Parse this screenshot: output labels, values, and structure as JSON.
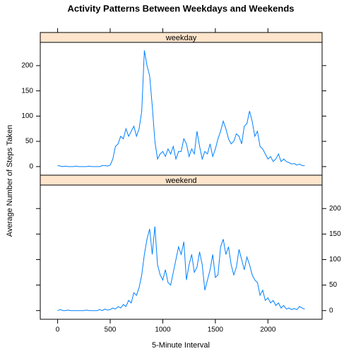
{
  "title": "Activity Patterns Between Weekdays and Weekends",
  "x_label": "5-Minute Interval",
  "y_label": "Average Number of Steps Taken",
  "chart_data": [
    {
      "type": "line",
      "strip": "weekday",
      "color": "#0080ff",
      "x": [
        0,
        25,
        50,
        75,
        100,
        125,
        150,
        175,
        200,
        225,
        250,
        275,
        300,
        325,
        350,
        375,
        400,
        425,
        450,
        475,
        500,
        525,
        550,
        575,
        600,
        625,
        650,
        675,
        700,
        725,
        750,
        775,
        800,
        825,
        850,
        875,
        900,
        925,
        950,
        975,
        1000,
        1025,
        1050,
        1075,
        1100,
        1125,
        1150,
        1175,
        1200,
        1225,
        1250,
        1275,
        1300,
        1325,
        1350,
        1375,
        1400,
        1425,
        1450,
        1475,
        1500,
        1525,
        1550,
        1575,
        1600,
        1625,
        1650,
        1675,
        1700,
        1725,
        1750,
        1775,
        1800,
        1825,
        1850,
        1875,
        1900,
        1925,
        1950,
        1975,
        2000,
        2025,
        2050,
        2075,
        2100,
        2125,
        2150,
        2175,
        2200,
        2225,
        2250,
        2275,
        2300,
        2325,
        2350
      ],
      "series": [
        {
          "values": [
            2,
            1,
            0,
            1,
            0,
            0,
            0,
            1,
            0,
            0,
            0,
            0,
            1,
            0,
            0,
            0,
            0,
            2,
            2,
            1,
            3,
            15,
            40,
            45,
            60,
            55,
            75,
            60,
            70,
            80,
            60,
            75,
            110,
            230,
            200,
            180,
            120,
            50,
            15,
            25,
            30,
            20,
            35,
            25,
            40,
            15,
            30,
            30,
            55,
            45,
            20,
            35,
            25,
            70,
            40,
            15,
            30,
            25,
            45,
            20,
            35,
            55,
            70,
            90,
            75,
            55,
            45,
            50,
            65,
            60,
            45,
            80,
            85,
            110,
            90,
            60,
            70,
            40,
            35,
            25,
            15,
            20,
            10,
            15,
            25,
            10,
            15,
            10,
            8,
            5,
            6,
            3,
            5,
            2,
            2
          ]
        }
      ],
      "xlim": [
        -165,
        2515
      ],
      "ylim": [
        -17,
        246
      ],
      "xticks": [
        0,
        500,
        1000,
        1500,
        2000
      ],
      "yticks": [
        0,
        50,
        100,
        150,
        200
      ],
      "ytick_side": "left"
    },
    {
      "type": "line",
      "strip": "weekend",
      "color": "#0080ff",
      "x": [
        0,
        25,
        50,
        75,
        100,
        125,
        150,
        175,
        200,
        225,
        250,
        275,
        300,
        325,
        350,
        375,
        400,
        425,
        450,
        475,
        500,
        525,
        550,
        575,
        600,
        625,
        650,
        675,
        700,
        725,
        750,
        775,
        800,
        825,
        850,
        875,
        900,
        925,
        950,
        975,
        1000,
        1025,
        1050,
        1075,
        1100,
        1125,
        1150,
        1175,
        1200,
        1225,
        1250,
        1275,
        1300,
        1325,
        1350,
        1375,
        1400,
        1425,
        1450,
        1475,
        1500,
        1525,
        1550,
        1575,
        1600,
        1625,
        1650,
        1675,
        1700,
        1725,
        1750,
        1775,
        1800,
        1825,
        1850,
        1875,
        1900,
        1925,
        1950,
        1975,
        2000,
        2025,
        2050,
        2075,
        2100,
        2125,
        2150,
        2175,
        2200,
        2225,
        2250,
        2275,
        2300,
        2325,
        2350
      ],
      "series": [
        {
          "values": [
            0,
            2,
            0,
            0,
            1,
            0,
            0,
            0,
            0,
            0,
            0,
            1,
            0,
            0,
            0,
            0,
            2,
            0,
            3,
            1,
            2,
            5,
            3,
            8,
            5,
            12,
            8,
            20,
            15,
            35,
            30,
            45,
            70,
            110,
            140,
            160,
            110,
            165,
            90,
            70,
            60,
            80,
            55,
            50,
            75,
            100,
            125,
            110,
            135,
            60,
            90,
            110,
            75,
            85,
            115,
            90,
            40,
            60,
            80,
            110,
            65,
            70,
            125,
            140,
            110,
            125,
            90,
            70,
            85,
            120,
            100,
            80,
            105,
            90,
            70,
            60,
            55,
            30,
            40,
            20,
            25,
            15,
            20,
            10,
            15,
            5,
            10,
            3,
            5,
            2,
            4,
            2,
            8,
            5,
            3
          ]
        }
      ],
      "xlim": [
        -165,
        2515
      ],
      "ylim": [
        -17,
        246
      ],
      "xticks": [
        0,
        500,
        1000,
        1500,
        2000
      ],
      "yticks": [
        0,
        50,
        100,
        150,
        200
      ],
      "ytick_side": "right"
    }
  ]
}
